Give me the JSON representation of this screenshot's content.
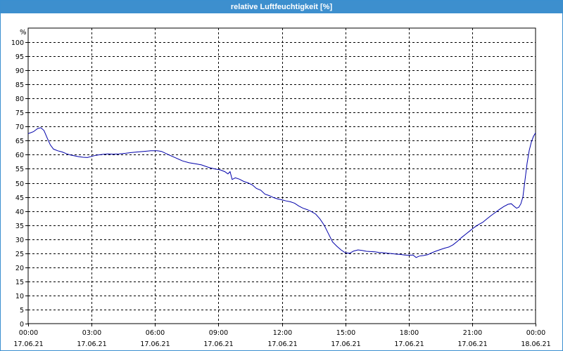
{
  "window": {
    "title": "relative Luftfeuchtigkeit [%]"
  },
  "chart_data": {
    "type": "line",
    "title": "relative Luftfeuchtigkeit [%]",
    "ylabel": "%",
    "xlabel": "",
    "ylim": [
      0,
      105
    ],
    "yticks": [
      0,
      5,
      10,
      15,
      20,
      25,
      30,
      35,
      40,
      45,
      50,
      55,
      60,
      65,
      70,
      75,
      80,
      85,
      90,
      95,
      100
    ],
    "grid": true,
    "x_unit": "hours since 17.06.21 00:00",
    "xlim": [
      0,
      24
    ],
    "xticks": [
      {
        "time": "00:00",
        "date": "17.06.21"
      },
      {
        "time": "03:00",
        "date": "17.06.21"
      },
      {
        "time": "06:00",
        "date": "17.06.21"
      },
      {
        "time": "09:00",
        "date": "17.06.21"
      },
      {
        "time": "12:00",
        "date": "17.06.21"
      },
      {
        "time": "15:00",
        "date": "17.06.21"
      },
      {
        "time": "18:00",
        "date": "17.06.21"
      },
      {
        "time": "21:00",
        "date": "17.06.21"
      },
      {
        "time": "00:00",
        "date": "18.06.21"
      }
    ],
    "series": [
      {
        "name": "",
        "color": "#0000aa",
        "points": [
          [
            0.0,
            67.5
          ],
          [
            0.25,
            68.2
          ],
          [
            0.45,
            69.3
          ],
          [
            0.6,
            69.6
          ],
          [
            0.75,
            68.6
          ],
          [
            0.9,
            66.0
          ],
          [
            1.05,
            63.5
          ],
          [
            1.2,
            62.0
          ],
          [
            1.4,
            61.4
          ],
          [
            1.6,
            61.0
          ],
          [
            1.8,
            60.4
          ],
          [
            2.0,
            59.9
          ],
          [
            2.2,
            59.6
          ],
          [
            2.4,
            59.3
          ],
          [
            2.6,
            59.1
          ],
          [
            2.8,
            59.0
          ],
          [
            3.0,
            59.4
          ],
          [
            3.2,
            59.8
          ],
          [
            3.4,
            60.0
          ],
          [
            3.6,
            60.2
          ],
          [
            3.8,
            60.3
          ],
          [
            4.0,
            60.2
          ],
          [
            4.3,
            60.3
          ],
          [
            4.6,
            60.5
          ],
          [
            4.9,
            60.8
          ],
          [
            5.2,
            61.0
          ],
          [
            5.5,
            61.2
          ],
          [
            5.8,
            61.4
          ],
          [
            6.1,
            61.4
          ],
          [
            6.3,
            61.2
          ],
          [
            6.5,
            60.5
          ],
          [
            6.7,
            59.8
          ],
          [
            7.0,
            58.8
          ],
          [
            7.3,
            57.8
          ],
          [
            7.6,
            57.2
          ],
          [
            7.9,
            56.8
          ],
          [
            8.2,
            56.4
          ],
          [
            8.5,
            55.6
          ],
          [
            8.8,
            55.0
          ],
          [
            9.1,
            54.6
          ],
          [
            9.3,
            54.0
          ],
          [
            9.45,
            53.2
          ],
          [
            9.55,
            54.0
          ],
          [
            9.65,
            51.2
          ],
          [
            9.8,
            51.8
          ],
          [
            10.0,
            51.3
          ],
          [
            10.2,
            50.5
          ],
          [
            10.4,
            50.0
          ],
          [
            10.6,
            49.3
          ],
          [
            10.8,
            48.0
          ],
          [
            11.0,
            47.4
          ],
          [
            11.2,
            46.0
          ],
          [
            11.4,
            45.5
          ],
          [
            11.6,
            44.8
          ],
          [
            11.8,
            44.3
          ],
          [
            12.0,
            44.0
          ],
          [
            12.2,
            43.6
          ],
          [
            12.4,
            43.3
          ],
          [
            12.6,
            42.8
          ],
          [
            12.8,
            41.8
          ],
          [
            13.0,
            41.0
          ],
          [
            13.2,
            40.5
          ],
          [
            13.4,
            39.8
          ],
          [
            13.6,
            38.9
          ],
          [
            13.8,
            37.2
          ],
          [
            14.0,
            35.0
          ],
          [
            14.2,
            32.0
          ],
          [
            14.4,
            29.0
          ],
          [
            14.6,
            27.5
          ],
          [
            14.8,
            26.2
          ],
          [
            15.0,
            25.2
          ],
          [
            15.2,
            25.0
          ],
          [
            15.4,
            25.8
          ],
          [
            15.6,
            26.2
          ],
          [
            15.8,
            26.0
          ],
          [
            16.0,
            25.7
          ],
          [
            16.2,
            25.6
          ],
          [
            16.4,
            25.5
          ],
          [
            16.6,
            25.3
          ],
          [
            16.8,
            25.2
          ],
          [
            17.0,
            25.0
          ],
          [
            17.2,
            24.9
          ],
          [
            17.4,
            24.7
          ],
          [
            17.6,
            24.6
          ],
          [
            17.8,
            24.4
          ],
          [
            18.0,
            24.3
          ],
          [
            18.2,
            24.4
          ],
          [
            18.35,
            23.5
          ],
          [
            18.5,
            24.0
          ],
          [
            18.7,
            24.2
          ],
          [
            18.9,
            24.5
          ],
          [
            19.1,
            25.2
          ],
          [
            19.3,
            25.8
          ],
          [
            19.5,
            26.3
          ],
          [
            19.7,
            26.8
          ],
          [
            19.9,
            27.2
          ],
          [
            20.1,
            28.0
          ],
          [
            20.3,
            29.2
          ],
          [
            20.5,
            30.6
          ],
          [
            20.7,
            31.8
          ],
          [
            20.9,
            33.0
          ],
          [
            21.1,
            34.2
          ],
          [
            21.3,
            35.2
          ],
          [
            21.5,
            36.0
          ],
          [
            21.7,
            37.2
          ],
          [
            21.9,
            38.4
          ],
          [
            22.1,
            39.5
          ],
          [
            22.3,
            40.6
          ],
          [
            22.5,
            41.6
          ],
          [
            22.7,
            42.4
          ],
          [
            22.85,
            42.6
          ],
          [
            23.0,
            41.6
          ],
          [
            23.1,
            41.0
          ],
          [
            23.2,
            41.3
          ],
          [
            23.3,
            42.5
          ],
          [
            23.4,
            45.0
          ],
          [
            23.5,
            51.0
          ],
          [
            23.6,
            57.0
          ],
          [
            23.7,
            61.5
          ],
          [
            23.8,
            64.5
          ],
          [
            23.9,
            66.5
          ],
          [
            24.0,
            67.8
          ]
        ]
      }
    ]
  }
}
